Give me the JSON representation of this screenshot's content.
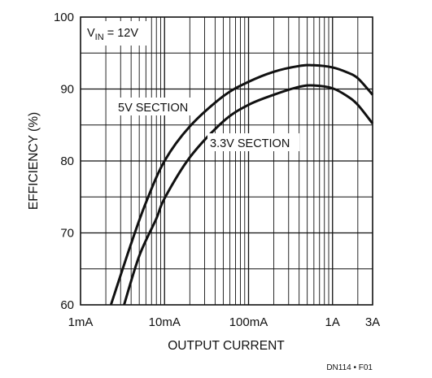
{
  "chart_data": {
    "type": "line",
    "xscale": "log",
    "xlabel": "OUTPUT CURRENT",
    "ylabel": "EFFICIENCY (%)",
    "xlim": [
      0.001,
      3
    ],
    "ylim": [
      60,
      100
    ],
    "x_ticks": [
      {
        "value": 0.001,
        "label": "1mA"
      },
      {
        "value": 0.01,
        "label": "10mA"
      },
      {
        "value": 0.1,
        "label": "100mA"
      },
      {
        "value": 1,
        "label": "1A"
      },
      {
        "value": 3,
        "label": "3A"
      }
    ],
    "y_ticks": [
      {
        "value": 60,
        "label": "60"
      },
      {
        "value": 70,
        "label": "70"
      },
      {
        "value": 80,
        "label": "80"
      },
      {
        "value": 90,
        "label": "90"
      },
      {
        "value": 100,
        "label": "100"
      }
    ],
    "grid": true,
    "annotation_main": "V",
    "annotation_sub": "IN",
    "annotation_rest": " = 12V",
    "series": [
      {
        "name": "5V SECTION",
        "x": [
          0.0023,
          0.004,
          0.006,
          0.01,
          0.02,
          0.05,
          0.1,
          0.2,
          0.4,
          0.6,
          1,
          1.5,
          2,
          3
        ],
        "y": [
          60,
          68.5,
          74.2,
          80,
          84.8,
          89,
          91,
          92.4,
          93.2,
          93.3,
          93,
          92.3,
          91.5,
          89.2
        ]
      },
      {
        "name": "3.3V SECTION",
        "x": [
          0.0033,
          0.005,
          0.008,
          0.01,
          0.02,
          0.05,
          0.1,
          0.2,
          0.4,
          0.6,
          1,
          1.5,
          2,
          3
        ],
        "y": [
          60,
          66.8,
          72,
          74.8,
          80.5,
          85.5,
          87.8,
          89.2,
          90.3,
          90.5,
          90.1,
          89,
          87.8,
          85.2
        ]
      }
    ],
    "footnote": "DN114 • F01"
  }
}
